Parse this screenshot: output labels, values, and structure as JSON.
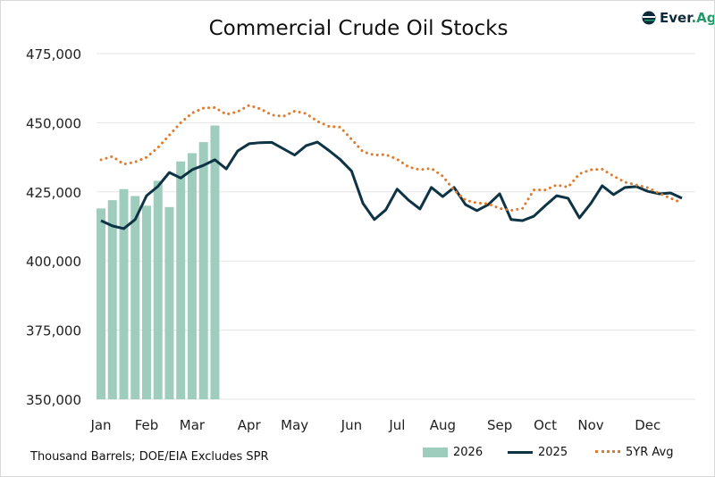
{
  "logo": {
    "text_main": "Ever",
    "text_accent": ".Ag"
  },
  "footnote": "Thousand Barrels; DOE/EIA Excludes SPR",
  "chart_data": {
    "type": "bar+line",
    "title": "Commercial Crude Oil Stocks",
    "ylim": [
      350000,
      475000
    ],
    "yticks": [
      350000,
      375000,
      400000,
      425000,
      450000,
      475000
    ],
    "ytick_labels": [
      "350,000",
      "375,000",
      "400,000",
      "425,000",
      "450,000",
      "475,000"
    ],
    "xtick_labels": [
      "Jan",
      "Feb",
      "Mar",
      "Apr",
      "May",
      "Jun",
      "Jul",
      "Aug",
      "Sep",
      "Oct",
      "Nov",
      "Dec"
    ],
    "xtick_weeks": [
      1,
      5,
      9,
      14,
      18,
      23,
      27,
      31,
      36,
      40,
      44,
      49
    ],
    "grid": "horizontal",
    "legend_position": "bottom-right",
    "series": [
      {
        "name": "2026",
        "kind": "bar",
        "color": "#9fcdbd",
        "values": [
          419000,
          422000,
          426000,
          423500,
          420000,
          429000,
          419500,
          436000,
          439000,
          443000,
          449000
        ]
      },
      {
        "name": "2025",
        "kind": "line",
        "color": "#0d3344",
        "values": [
          414600,
          412700,
          411700,
          415000,
          423600,
          427000,
          432000,
          430000,
          433000,
          434600,
          436600,
          433300,
          439800,
          442400,
          442800,
          442900,
          440600,
          438300,
          441700,
          443000,
          440000,
          436700,
          432500,
          420800,
          415000,
          418500,
          426000,
          422000,
          418800,
          426600,
          423300,
          426600,
          420400,
          418200,
          420400,
          424300,
          415000,
          414600,
          416200,
          420000,
          423600,
          422700,
          415600,
          420800,
          427200,
          424000,
          426600,
          426900,
          425200,
          424300,
          424600,
          422700
        ]
      },
      {
        "name": "5YR Avg",
        "kind": "dotted",
        "color": "#e07b2e",
        "values": [
          436600,
          437800,
          435000,
          435800,
          437500,
          441000,
          445500,
          450000,
          453500,
          455300,
          455500,
          453000,
          454000,
          456300,
          455000,
          452800,
          452300,
          454200,
          453300,
          450500,
          448700,
          448400,
          444000,
          439500,
          438300,
          438500,
          436800,
          434000,
          433000,
          433500,
          430700,
          425600,
          422000,
          421000,
          420700,
          419000,
          418300,
          419000,
          425700,
          425700,
          427500,
          426700,
          431500,
          433000,
          433200,
          430700,
          428500,
          427500,
          426500,
          424500,
          422700,
          421000
        ]
      }
    ]
  }
}
